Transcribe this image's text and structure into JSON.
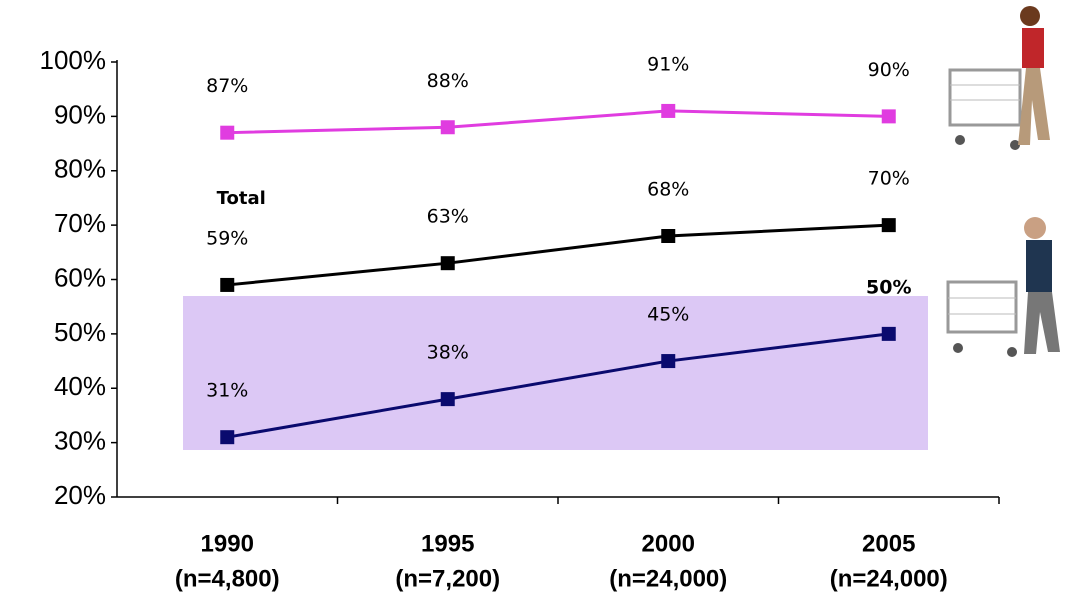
{
  "chart_data": {
    "type": "line",
    "categories": [
      "1990",
      "1995",
      "2000",
      "2005"
    ],
    "sample_sizes": [
      "(n=4,800)",
      "(n=7,200)",
      "(n=24,000)",
      "(n=24,000)"
    ],
    "series": [
      {
        "color": "#e03ce0",
        "values": [
          87,
          88,
          91,
          90
        ],
        "value_labels": [
          "87%",
          "88%",
          "91%",
          "90%"
        ]
      },
      {
        "name": "Total",
        "color": "#000000",
        "values": [
          59,
          63,
          68,
          70
        ],
        "value_labels": [
          "59%",
          "63%",
          "68%",
          "70%"
        ]
      },
      {
        "color": "#0a0a6e",
        "values": [
          31,
          38,
          45,
          50
        ],
        "value_labels": [
          "31%",
          "38%",
          "45%",
          "50%"
        ]
      }
    ],
    "ylim": [
      20,
      100
    ],
    "yticks": [
      {
        "value": 20,
        "label": "20%"
      },
      {
        "value": 30,
        "label": "30%"
      },
      {
        "value": 40,
        "label": "40%"
      },
      {
        "value": 50,
        "label": "50%"
      },
      {
        "value": 60,
        "label": "60%"
      },
      {
        "value": 70,
        "label": "70%"
      },
      {
        "value": 80,
        "label": "80%"
      },
      {
        "value": 90,
        "label": "90%"
      },
      {
        "value": 100,
        "label": "100%"
      }
    ]
  }
}
